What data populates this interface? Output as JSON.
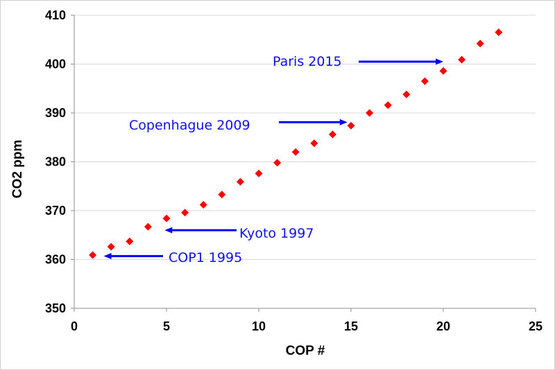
{
  "chart_data": {
    "type": "scatter",
    "title": "",
    "xlabel": "COP #",
    "ylabel": "CO2 ppm",
    "xlim": [
      0,
      25
    ],
    "ylim": [
      350,
      410
    ],
    "x_ticks": [
      0,
      5,
      10,
      15,
      20,
      25
    ],
    "y_ticks": [
      350,
      360,
      370,
      380,
      390,
      400,
      410
    ],
    "grid": "horizontal",
    "legend": "none",
    "marker": "diamond",
    "colors": {
      "points": "#ff0000",
      "annotations": "#0000ff",
      "grid": "#d9d9d9"
    },
    "series": [
      {
        "points": [
          {
            "x": 1,
            "y": 360.9
          },
          {
            "x": 2,
            "y": 362.6
          },
          {
            "x": 3,
            "y": 363.7
          },
          {
            "x": 4,
            "y": 366.7
          },
          {
            "x": 5,
            "y": 368.4
          },
          {
            "x": 6,
            "y": 369.6
          },
          {
            "x": 7,
            "y": 371.2
          },
          {
            "x": 8,
            "y": 373.3
          },
          {
            "x": 9,
            "y": 375.9
          },
          {
            "x": 10,
            "y": 377.6
          },
          {
            "x": 11,
            "y": 379.8
          },
          {
            "x": 12,
            "y": 382.0
          },
          {
            "x": 13,
            "y": 383.8
          },
          {
            "x": 14,
            "y": 385.6
          },
          {
            "x": 15,
            "y": 387.4
          },
          {
            "x": 16,
            "y": 390.0
          },
          {
            "x": 17,
            "y": 391.6
          },
          {
            "x": 18,
            "y": 393.8
          },
          {
            "x": 19,
            "y": 396.5
          },
          {
            "x": 20,
            "y": 398.6
          },
          {
            "x": 21,
            "y": 400.9
          },
          {
            "x": 22,
            "y": 404.2
          },
          {
            "x": 23,
            "y": 406.5
          }
        ]
      }
    ],
    "annotations": [
      {
        "text": "Paris 2015",
        "x": 20,
        "y": 400.5
      },
      {
        "text": "Copenhague 2009",
        "x": 14.8,
        "y": 388.1
      },
      {
        "text": "Kyoto 1997",
        "x": 4.9,
        "y": 366
      },
      {
        "text": "COP1  1995",
        "x": 1.6,
        "y": 360.7
      }
    ]
  }
}
